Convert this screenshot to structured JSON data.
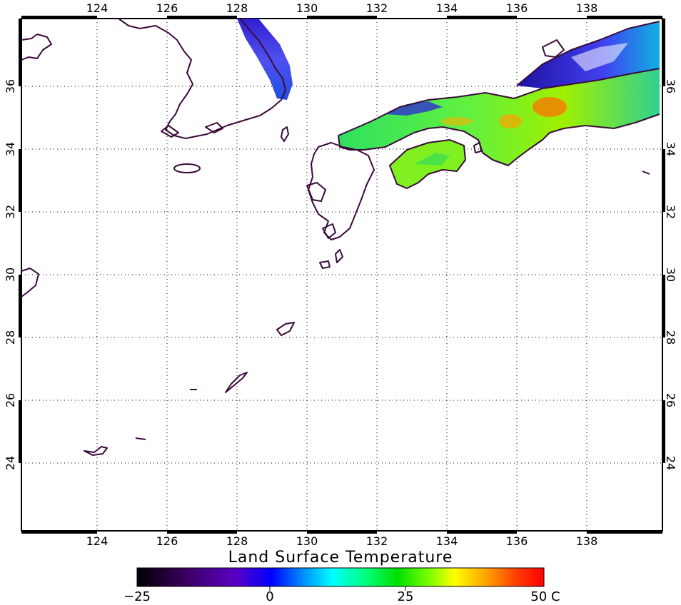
{
  "map": {
    "title": "Land Surface Temperature",
    "top_ticks": [
      "124",
      "126",
      "128",
      "130",
      "132",
      "134",
      "136",
      "138"
    ],
    "bottom_ticks": [
      "124",
      "126",
      "128",
      "130",
      "132",
      "134",
      "136",
      "138"
    ],
    "left_ticks": [
      "36",
      "34",
      "32",
      "30",
      "28",
      "26",
      "24"
    ],
    "right_ticks": [
      "36",
      "34",
      "32",
      "30",
      "28",
      "26",
      "24"
    ],
    "lon_range": [
      122,
      140
    ],
    "lat_range": [
      22,
      38
    ],
    "colorbar": {
      "labels": [
        "−25",
        "0",
        "25",
        "50 C"
      ],
      "colors": [
        "#000000",
        "#3a0060",
        "#5a00c0",
        "#0000ff",
        "#0080ff",
        "#00ffff",
        "#00ff80",
        "#00e000",
        "#80ff00",
        "#ffff00",
        "#ffa000",
        "#ff4000",
        "#ff0000"
      ]
    },
    "colors": {
      "coastline": "#3a0a3a",
      "cold": "#4020e0",
      "cool": "#00c8ff",
      "mild": "#30e060",
      "warm": "#a0f000",
      "hot": "#ff6000"
    }
  }
}
